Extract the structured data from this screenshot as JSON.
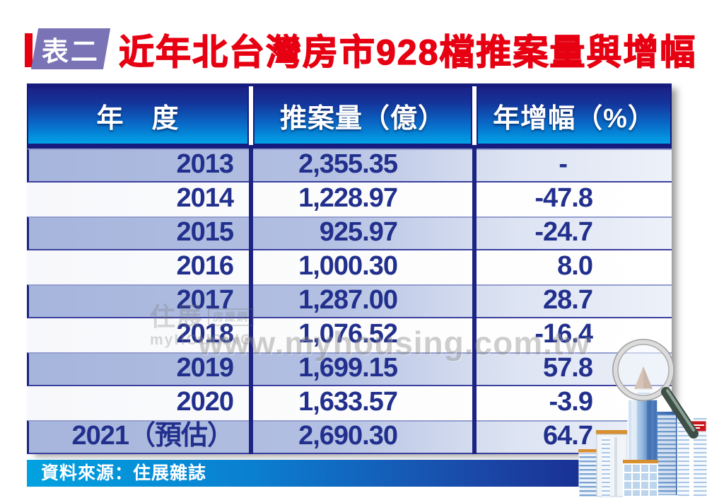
{
  "page": {
    "background": "#ffffff"
  },
  "header": {
    "badge_label": "表二",
    "title": "近年北台灣房市928檔推案量與增幅",
    "title_color": "#e60012",
    "badge_color": "#7a73b6",
    "badge_bar_color": "#e60012"
  },
  "table": {
    "columns": [
      "年　度",
      "推案量（億）",
      "年增幅（%）"
    ],
    "rows": [
      [
        "2013",
        "2,355.35",
        "-"
      ],
      [
        "2014",
        "1,228.97",
        "-47.8"
      ],
      [
        "2015",
        "925.97",
        "-24.7"
      ],
      [
        "2016",
        "1,000.30",
        "8.0"
      ],
      [
        "2017",
        "1,287.00",
        "28.7"
      ],
      [
        "2018",
        "1,076.52",
        "-16.4"
      ],
      [
        "2019",
        "1,699.15",
        "57.8"
      ],
      [
        "2020",
        "1,633.57",
        "-3.9"
      ],
      [
        "2021（預估）",
        "2,690.30",
        "64.7"
      ]
    ],
    "colors": {
      "header_gradient_top": "#1b2185",
      "header_gradient_bottom": "#00a2e8",
      "row_alt": "#aebce2",
      "row_plain": "#fdfdfd",
      "divider": "#1d2383",
      "text": "#22308d"
    }
  },
  "watermark": {
    "url_text": "www.myhousing.com.tw",
    "logo_cjk": "住展",
    "logo_box": "房屋網",
    "logo_latin": "myHOUSING"
  },
  "footer": {
    "source": "資料來源：住展雜誌"
  },
  "illustration": {
    "name": "buildings-with-magnifier"
  },
  "chart_data": {
    "type": "table",
    "title": "近年北台灣房市928檔推案量與增幅",
    "columns": [
      "年度",
      "推案量（億）",
      "年增幅（%）"
    ],
    "years": [
      "2013",
      "2014",
      "2015",
      "2016",
      "2017",
      "2018",
      "2019",
      "2020",
      "2021（預估）"
    ],
    "volume_billion": [
      2355.35,
      1228.97,
      925.97,
      1000.3,
      1287.0,
      1076.52,
      1699.15,
      1633.57,
      2690.3
    ],
    "yoy_growth_pct": [
      null,
      -47.8,
      -24.7,
      8.0,
      28.7,
      -16.4,
      57.8,
      -3.9,
      64.7
    ],
    "source": "住展雜誌"
  }
}
